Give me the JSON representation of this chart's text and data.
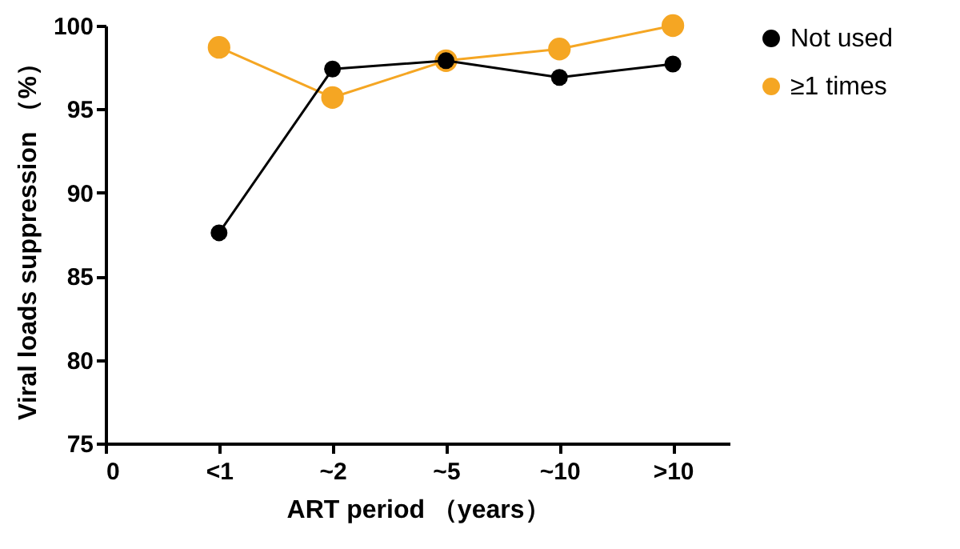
{
  "chart_data": {
    "type": "line",
    "xlabel": "ART period （years）",
    "ylabel": "Viral loads suppression （%）",
    "categories": [
      "0",
      "<1",
      "~2",
      "~5",
      "~10",
      ">10"
    ],
    "ylim": [
      75,
      100
    ],
    "yticks": [
      75,
      80,
      85,
      90,
      95,
      100
    ],
    "series": [
      {
        "name": "Not used",
        "color": "#000000",
        "values": [
          null,
          87.6,
          97.4,
          97.9,
          96.9,
          97.7
        ]
      },
      {
        "name": "≥1 times",
        "color": "#f5a623",
        "values": [
          null,
          98.7,
          95.7,
          97.9,
          98.6,
          100
        ]
      }
    ],
    "marker": "circle",
    "line_style": "solid",
    "grid": false,
    "legend": "top right"
  }
}
